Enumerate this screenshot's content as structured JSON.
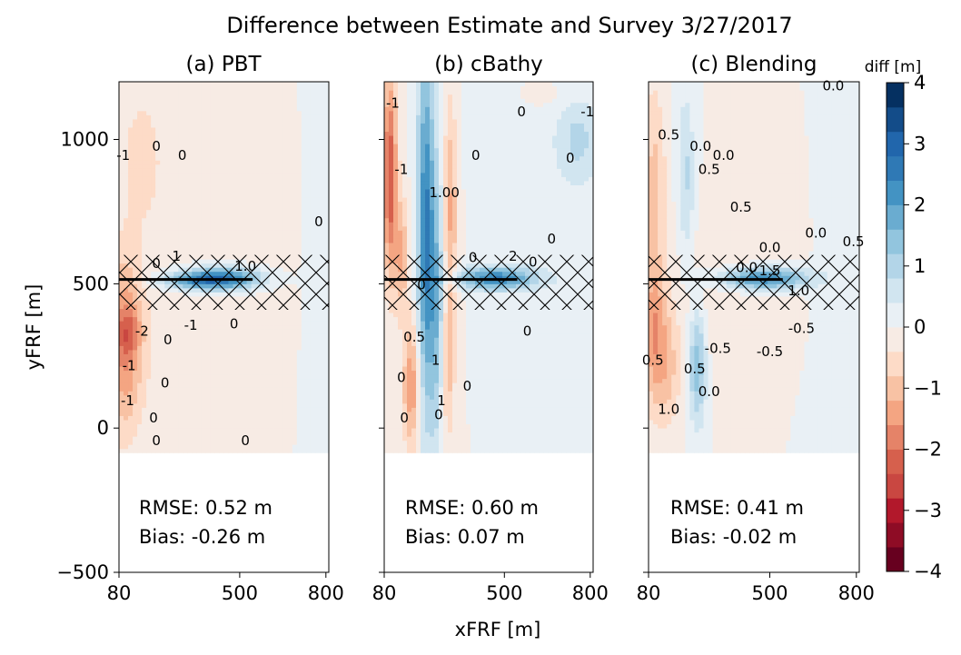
{
  "figure_title": "Difference between Estimate and Survey 3/27/2017",
  "colorbar": {
    "label": "diff [m]",
    "ticks": [
      "4",
      "3",
      "2",
      "1",
      "0",
      "−1",
      "−2",
      "−3",
      "−4"
    ],
    "levels": [
      -4,
      -3.5,
      -3,
      -2.5,
      -2,
      -1.5,
      -1,
      -0.5,
      0,
      0.5,
      1,
      1.5,
      2,
      2.5,
      3,
      3.5,
      4
    ],
    "colors": [
      "#67001f",
      "#8e0c25",
      "#b2182b",
      "#c94741",
      "#d6604d",
      "#e58368",
      "#f4a582",
      "#f8c2a4",
      "#fddbc7",
      "#f7ebe4",
      "#e9f0f5",
      "#d1e5f0",
      "#b3d5e8",
      "#92c5de",
      "#6aacd0",
      "#4393c3",
      "#2f79b5",
      "#2166ac",
      "#134c89",
      "#053061"
    ]
  },
  "chart_data": {
    "type": "heatmap",
    "title": "Difference between Estimate and Survey 3/27/2017",
    "xlabel": "xFRF [m]",
    "ylabel": "yFRF [m]",
    "xlim": [
      80,
      810
    ],
    "ylim": [
      -500,
      1200
    ],
    "xticks": [
      80,
      500,
      800
    ],
    "xtick_labels": [
      "80",
      "500",
      "800"
    ],
    "yticks": [
      -500,
      0,
      500,
      1000
    ],
    "ytick_labels": [
      "−500",
      "0",
      "500",
      "1000"
    ],
    "data_extent_y": [
      -85,
      1200
    ],
    "pier": {
      "y": 515,
      "x_end": 545,
      "hatch_y_range": [
        410,
        600
      ]
    },
    "panels": [
      {
        "title": "(a) PBT",
        "rmse_label": "RMSE:  0.52 m",
        "bias_label": "Bias: -0.26 m",
        "rmse": 0.52,
        "bias": -0.26,
        "contour_labels": [
          {
            "text": "0",
            "x": 210,
            "y": 960
          },
          {
            "text": "0",
            "x": 300,
            "y": 930
          },
          {
            "text": "0",
            "x": 775,
            "y": 700
          },
          {
            "text": "-1",
            "x": 95,
            "y": 930
          },
          {
            "text": "0",
            "x": 210,
            "y": 555
          },
          {
            "text": "1",
            "x": 280,
            "y": 580
          },
          {
            "text": "1.0",
            "x": 520,
            "y": 545
          },
          {
            "text": "-1",
            "x": 330,
            "y": 340
          },
          {
            "text": "0",
            "x": 250,
            "y": 290
          },
          {
            "text": "0",
            "x": 480,
            "y": 345
          },
          {
            "text": "-2",
            "x": 160,
            "y": 320
          },
          {
            "text": "-1",
            "x": 115,
            "y": 200
          },
          {
            "text": "0",
            "x": 240,
            "y": 140
          },
          {
            "text": "-1",
            "x": 110,
            "y": 80
          },
          {
            "text": "0",
            "x": 200,
            "y": 20
          },
          {
            "text": "0",
            "x": 210,
            "y": -60
          },
          {
            "text": "0",
            "x": 520,
            "y": -60
          }
        ]
      },
      {
        "title": "(b) cBathy",
        "rmse_label": "RMSE:  0.60 m",
        "bias_label": "Bias:  0.07 m",
        "rmse": 0.6,
        "bias": 0.07,
        "contour_labels": [
          {
            "text": "0",
            "x": 560,
            "y": 1080
          },
          {
            "text": "-1",
            "x": 790,
            "y": 1080
          },
          {
            "text": "0",
            "x": 730,
            "y": 920
          },
          {
            "text": "0",
            "x": 400,
            "y": 930
          },
          {
            "text": "0",
            "x": 665,
            "y": 640
          },
          {
            "text": "1.00",
            "x": 290,
            "y": 800
          },
          {
            "text": "-1",
            "x": 110,
            "y": 1110
          },
          {
            "text": "-1",
            "x": 140,
            "y": 880
          },
          {
            "text": "0",
            "x": 390,
            "y": 575
          },
          {
            "text": "2",
            "x": 530,
            "y": 580
          },
          {
            "text": "0",
            "x": 600,
            "y": 560
          },
          {
            "text": "0",
            "x": 210,
            "y": 480
          },
          {
            "text": "0",
            "x": 580,
            "y": 320
          },
          {
            "text": "0.5",
            "x": 185,
            "y": 300
          },
          {
            "text": "1",
            "x": 260,
            "y": 220
          },
          {
            "text": "0",
            "x": 140,
            "y": 160
          },
          {
            "text": "1",
            "x": 280,
            "y": 80
          },
          {
            "text": "0",
            "x": 150,
            "y": 20
          },
          {
            "text": "0",
            "x": 270,
            "y": 30
          },
          {
            "text": "0",
            "x": 370,
            "y": 130
          }
        ]
      },
      {
        "title": "(c) Blending",
        "rmse_label": "RMSE:  0.41 m",
        "bias_label": "Bias: -0.02 m",
        "rmse": 0.41,
        "bias": -0.02,
        "contour_labels": [
          {
            "text": "0.0",
            "x": 720,
            "y": 1170
          },
          {
            "text": "0.5",
            "x": 150,
            "y": 1000
          },
          {
            "text": "0.0",
            "x": 260,
            "y": 960
          },
          {
            "text": "0.0",
            "x": 340,
            "y": 930
          },
          {
            "text": "0.5",
            "x": 290,
            "y": 880
          },
          {
            "text": "0.5",
            "x": 400,
            "y": 750
          },
          {
            "text": "0.0",
            "x": 660,
            "y": 660
          },
          {
            "text": "0.5",
            "x": 790,
            "y": 630
          },
          {
            "text": "0.0",
            "x": 500,
            "y": 610
          },
          {
            "text": "0.0",
            "x": 420,
            "y": 540
          },
          {
            "text": "1.5",
            "x": 500,
            "y": 530
          },
          {
            "text": "1.0",
            "x": 600,
            "y": 460
          },
          {
            "text": "-0.5",
            "x": 610,
            "y": 330
          },
          {
            "text": "-0.5",
            "x": 320,
            "y": 260
          },
          {
            "text": "-0.5",
            "x": 500,
            "y": 250
          },
          {
            "text": "0.5",
            "x": 95,
            "y": 220
          },
          {
            "text": "0.5",
            "x": 240,
            "y": 190
          },
          {
            "text": "0.0",
            "x": 290,
            "y": 110
          },
          {
            "text": "1.0",
            "x": 150,
            "y": 50
          }
        ]
      }
    ]
  }
}
